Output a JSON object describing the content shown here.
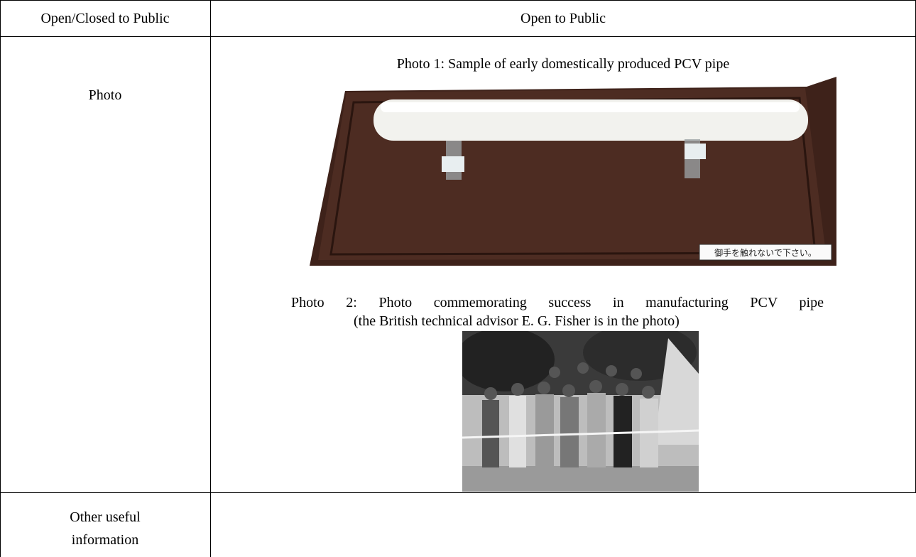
{
  "table": {
    "header": {
      "label": "Open/Closed to Public",
      "value": "Open to Public"
    },
    "photo_row": {
      "label": "Photo",
      "photos": [
        {
          "caption": "Photo 1: Sample of early domestically produced PCV pipe",
          "sign": "御手を触れないで下さい。"
        },
        {
          "caption": [
            "Photo 2: Photo commemorating success in manufacturing PCV pipe",
            "(the British technical advisor E. G. Fisher is in the photo)"
          ]
        }
      ]
    },
    "other_row": {
      "label": "Other useful information"
    }
  }
}
